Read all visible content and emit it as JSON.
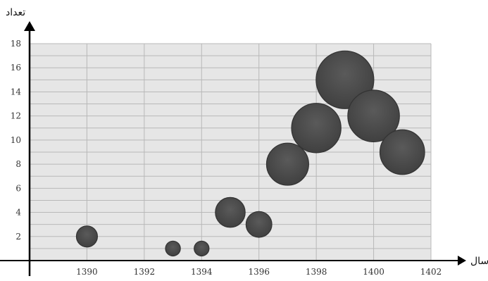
{
  "chart_data": {
    "type": "scatter",
    "variant": "bubble",
    "title": "",
    "xlabel": "سال",
    "ylabel": "تعداد",
    "xlim": [
      1388,
      1402
    ],
    "ylim": [
      0,
      18
    ],
    "x_ticks": [
      "1390",
      "1392",
      "1394",
      "1396",
      "1398",
      "1400",
      "1402"
    ],
    "y_ticks": [
      "2",
      "4",
      "6",
      "8",
      "10",
      "12",
      "14",
      "16",
      "18"
    ],
    "grid": true,
    "plot_background": "#e6e6e6",
    "grid_color": "#b8b8b8",
    "bubble_color": "#4a4a4a",
    "series": [
      {
        "points": [
          {
            "x": 1390,
            "y": 2,
            "size": 2
          },
          {
            "x": 1393,
            "y": 1,
            "size": 1
          },
          {
            "x": 1394,
            "y": 1,
            "size": 1
          },
          {
            "x": 1395,
            "y": 4,
            "size": 4
          },
          {
            "x": 1396,
            "y": 3,
            "size": 3
          },
          {
            "x": 1397,
            "y": 8,
            "size": 8
          },
          {
            "x": 1398,
            "y": 11,
            "size": 11
          },
          {
            "x": 1399,
            "y": 15,
            "size": 15
          },
          {
            "x": 1400,
            "y": 12,
            "size": 12
          },
          {
            "x": 1401,
            "y": 9,
            "size": 9
          }
        ]
      }
    ]
  }
}
